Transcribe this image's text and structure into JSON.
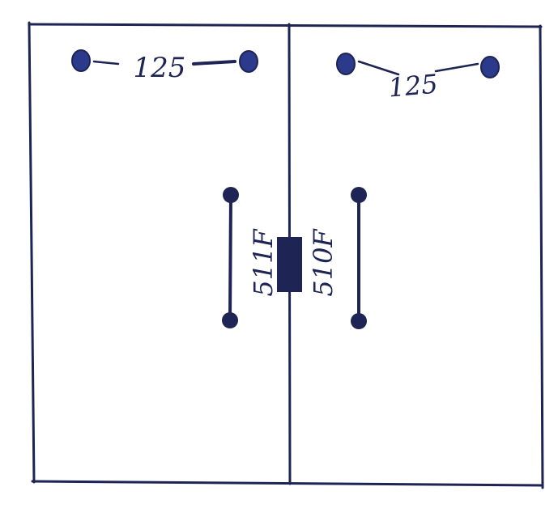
{
  "colors": {
    "ink": "#1e2454",
    "bolt": "#2c3a8c",
    "paper": "#ffffff"
  },
  "left_panel": {
    "spacing_label": "125",
    "handle_label": "511F"
  },
  "right_panel": {
    "spacing_label": "125",
    "handle_label": "510F"
  },
  "center_latch": {
    "icon": "latch-block"
  }
}
